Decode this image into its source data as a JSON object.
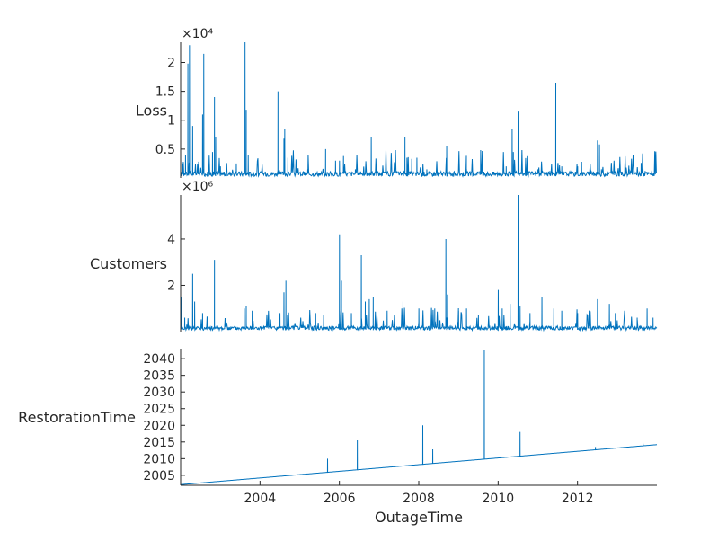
{
  "chart_data": {
    "type": "line",
    "layout": "stackedplot",
    "xlabel": "OutageTime",
    "xlim": [
      2002.0,
      2014.0
    ],
    "xticks": [
      2004,
      2006,
      2008,
      2010,
      2012
    ],
    "xtick_labels": [
      "2004",
      "2006",
      "2008",
      "2010",
      "2012"
    ],
    "color": "#0072BD",
    "panels": [
      {
        "ylabel": "Loss",
        "ylim": [
          0,
          23500
        ],
        "yticks": [
          5000,
          10000,
          15000,
          20000
        ],
        "ytick_labels": [
          "0.5",
          "1",
          "1.5",
          "2"
        ],
        "exponent_label": "×10⁴",
        "baseline": 700,
        "spikes": [
          [
            2002.05,
            2500
          ],
          [
            2002.12,
            4000
          ],
          [
            2002.18,
            19800
          ],
          [
            2002.22,
            23000
          ],
          [
            2002.3,
            9000
          ],
          [
            2002.45,
            1500
          ],
          [
            2002.55,
            11000
          ],
          [
            2002.58,
            21500
          ],
          [
            2002.8,
            4500
          ],
          [
            2002.85,
            14000
          ],
          [
            2002.88,
            7000
          ],
          [
            2003.0,
            2000
          ],
          [
            2003.4,
            2500
          ],
          [
            2003.62,
            23500
          ],
          [
            2003.65,
            11800
          ],
          [
            2003.7,
            4000
          ],
          [
            2004.45,
            15000
          ],
          [
            2004.6,
            6800
          ],
          [
            2004.62,
            8500
          ],
          [
            2004.7,
            3500
          ],
          [
            2005.2,
            1500
          ],
          [
            2005.65,
            5000
          ],
          [
            2005.9,
            3000
          ],
          [
            2006.0,
            3000
          ],
          [
            2006.1,
            3800
          ],
          [
            2006.4,
            1500
          ],
          [
            2006.8,
            7000
          ],
          [
            2007.65,
            7000
          ],
          [
            2007.7,
            3500
          ],
          [
            2007.82,
            3300
          ],
          [
            2007.95,
            3500
          ],
          [
            2008.2,
            1500
          ],
          [
            2008.7,
            5500
          ],
          [
            2009.2,
            1500
          ],
          [
            2009.55,
            1200
          ],
          [
            2010.2,
            2000
          ],
          [
            2010.35,
            8500
          ],
          [
            2010.38,
            4500
          ],
          [
            2010.5,
            11500
          ],
          [
            2010.52,
            6000
          ],
          [
            2011.0,
            1500
          ],
          [
            2011.3,
            1200
          ],
          [
            2011.45,
            16500
          ],
          [
            2011.6,
            2000
          ],
          [
            2012.0,
            2000
          ],
          [
            2012.1,
            2800
          ],
          [
            2012.5,
            6500
          ],
          [
            2012.55,
            5800
          ],
          [
            2012.6,
            1500
          ],
          [
            2013.3,
            1500
          ],
          [
            2013.6,
            2600
          ],
          [
            2013.7,
            1200
          ]
        ]
      },
      {
        "ylabel": "Customers",
        "ylim": [
          0,
          5900000
        ],
        "yticks": [
          2000000,
          4000000
        ],
        "ytick_labels": [
          "2",
          "4"
        ],
        "exponent_label": "×10⁶",
        "baseline": 150000,
        "spikes": [
          [
            2002.02,
            1500000
          ],
          [
            2002.1,
            600000
          ],
          [
            2002.15,
            300000
          ],
          [
            2002.3,
            2500000
          ],
          [
            2002.35,
            1300000
          ],
          [
            2002.55,
            800000
          ],
          [
            2002.85,
            3100000
          ],
          [
            2003.6,
            1000000
          ],
          [
            2003.65,
            1100000
          ],
          [
            2003.8,
            900000
          ],
          [
            2004.5,
            800000
          ],
          [
            2004.6,
            1700000
          ],
          [
            2004.65,
            2200000
          ],
          [
            2005.4,
            800000
          ],
          [
            2005.6,
            700000
          ],
          [
            2006.0,
            4200000
          ],
          [
            2006.05,
            2200000
          ],
          [
            2006.3,
            800000
          ],
          [
            2006.55,
            3300000
          ],
          [
            2006.65,
            1300000
          ],
          [
            2006.75,
            1400000
          ],
          [
            2006.85,
            1500000
          ],
          [
            2007.2,
            900000
          ],
          [
            2007.6,
            1300000
          ],
          [
            2008.0,
            1000000
          ],
          [
            2008.4,
            1000000
          ],
          [
            2008.68,
            4000000
          ],
          [
            2008.72,
            1600000
          ],
          [
            2009.0,
            900000
          ],
          [
            2009.2,
            1000000
          ],
          [
            2009.5,
            700000
          ],
          [
            2010.0,
            1800000
          ],
          [
            2010.1,
            1000000
          ],
          [
            2010.3,
            1200000
          ],
          [
            2010.5,
            5900000
          ],
          [
            2010.55,
            1100000
          ],
          [
            2010.8,
            800000
          ],
          [
            2011.1,
            1500000
          ],
          [
            2011.4,
            1000000
          ],
          [
            2011.6,
            900000
          ],
          [
            2012.0,
            800000
          ],
          [
            2012.5,
            1400000
          ],
          [
            2012.8,
            1200000
          ],
          [
            2012.95,
            800000
          ],
          [
            2013.5,
            600000
          ],
          [
            2013.75,
            1000000
          ],
          [
            2013.9,
            600000
          ]
        ]
      },
      {
        "ylabel": "RestorationTime",
        "ylim": [
          2002.0,
          2043.0
        ],
        "yticks": [
          2005,
          2010,
          2015,
          2020,
          2025,
          2030,
          2035,
          2040
        ],
        "ytick_labels": [
          "2005",
          "2010",
          "2015",
          "2020",
          "2025",
          "2030",
          "2035",
          "2040"
        ],
        "exponent_label": "",
        "trend": [
          [
            2002.0,
            2002.2
          ],
          [
            2014.0,
            2014.2
          ]
        ],
        "spikes": [
          [
            2005.7,
            2010.0
          ],
          [
            2006.45,
            2015.5
          ],
          [
            2008.1,
            2020.0
          ],
          [
            2008.35,
            2012.8
          ],
          [
            2009.65,
            2042.5
          ],
          [
            2010.55,
            2018.0
          ],
          [
            2012.45,
            2013.5
          ],
          [
            2013.65,
            2014.5
          ]
        ]
      }
    ]
  }
}
